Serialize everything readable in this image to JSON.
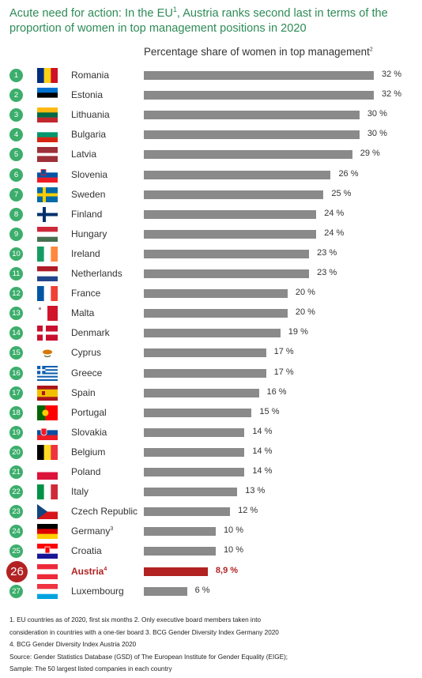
{
  "title": "Acute need for action: In the EU¹, Austria ranks second last in terms of the proportion of women in top management positions in 2020",
  "colors": {
    "title": "#2e8b57",
    "rank_badge": "#3cae6c",
    "bar": "#8a8a8a",
    "highlight": "#b22222"
  },
  "chart_data": {
    "type": "bar",
    "orientation": "horizontal",
    "title": "Percentage share of women in top management²",
    "unit": "%",
    "xlim": [
      0,
      32
    ],
    "grid": false,
    "highlight": "Austria⁴",
    "ranks": [
      1,
      2,
      3,
      4,
      5,
      6,
      7,
      8,
      9,
      10,
      11,
      12,
      13,
      14,
      15,
      16,
      17,
      18,
      19,
      20,
      21,
      22,
      23,
      24,
      25,
      26,
      27
    ],
    "categories": [
      "Romania",
      "Estonia",
      "Lithuania",
      "Bulgaria",
      "Latvia",
      "Slovenia",
      "Sweden",
      "Finland",
      "Hungary",
      "Ireland",
      "Netherlands",
      "France",
      "Malta",
      "Denmark",
      "Cyprus",
      "Greece",
      "Spain",
      "Portugal",
      "Slovakia",
      "Belgium",
      "Poland",
      "Italy",
      "Czech Republic",
      "Germany³",
      "Croatia",
      "Austria⁴",
      "Luxembourg"
    ],
    "values": [
      32,
      32,
      30,
      30,
      29,
      26,
      25,
      24,
      24,
      23,
      23,
      20,
      20,
      19,
      17,
      17,
      16,
      15,
      14,
      14,
      14,
      13,
      12,
      10,
      10,
      8.9,
      6
    ],
    "value_labels": [
      "32 %",
      "32 %",
      "30 %",
      "30 %",
      "29 %",
      "26 %",
      "25 %",
      "24 %",
      "24 %",
      "23 %",
      "23 %",
      "20 %",
      "20 %",
      "19 %",
      "17 %",
      "17 %",
      "16 %",
      "15 %",
      "14 %",
      "14 %",
      "14 %",
      "13 %",
      "12 %",
      "10 %",
      "10 %",
      "8,9 %",
      "6 %"
    ],
    "flags": [
      "romania-flag",
      "estonia-flag",
      "lithuania-flag",
      "bulgaria-flag",
      "latvia-flag",
      "slovenia-flag",
      "sweden-flag",
      "finland-flag",
      "hungary-flag",
      "ireland-flag",
      "netherlands-flag",
      "france-flag",
      "malta-flag",
      "denmark-flag",
      "cyprus-flag",
      "greece-flag",
      "spain-flag",
      "portugal-flag",
      "slovakia-flag",
      "belgium-flag",
      "poland-flag",
      "italy-flag",
      "czech-republic-flag",
      "germany-flag",
      "croatia-flag",
      "austria-flag",
      "luxembourg-flag"
    ]
  },
  "footnotes": [
    "1. EU countries as of 2020, first six months 2. Only executive board members taken into",
    "consideration in countries with a one-tier board 3. BCG Gender Diversity Index Germany 2020",
    "4. BCG Gender Diversity Index Austria 2020",
    "Source: Gender Statistics Database (GSD) of The European Institute for Gender Equality (EIGE);",
    "Sample: The 50 largest listed companies in each country"
  ]
}
